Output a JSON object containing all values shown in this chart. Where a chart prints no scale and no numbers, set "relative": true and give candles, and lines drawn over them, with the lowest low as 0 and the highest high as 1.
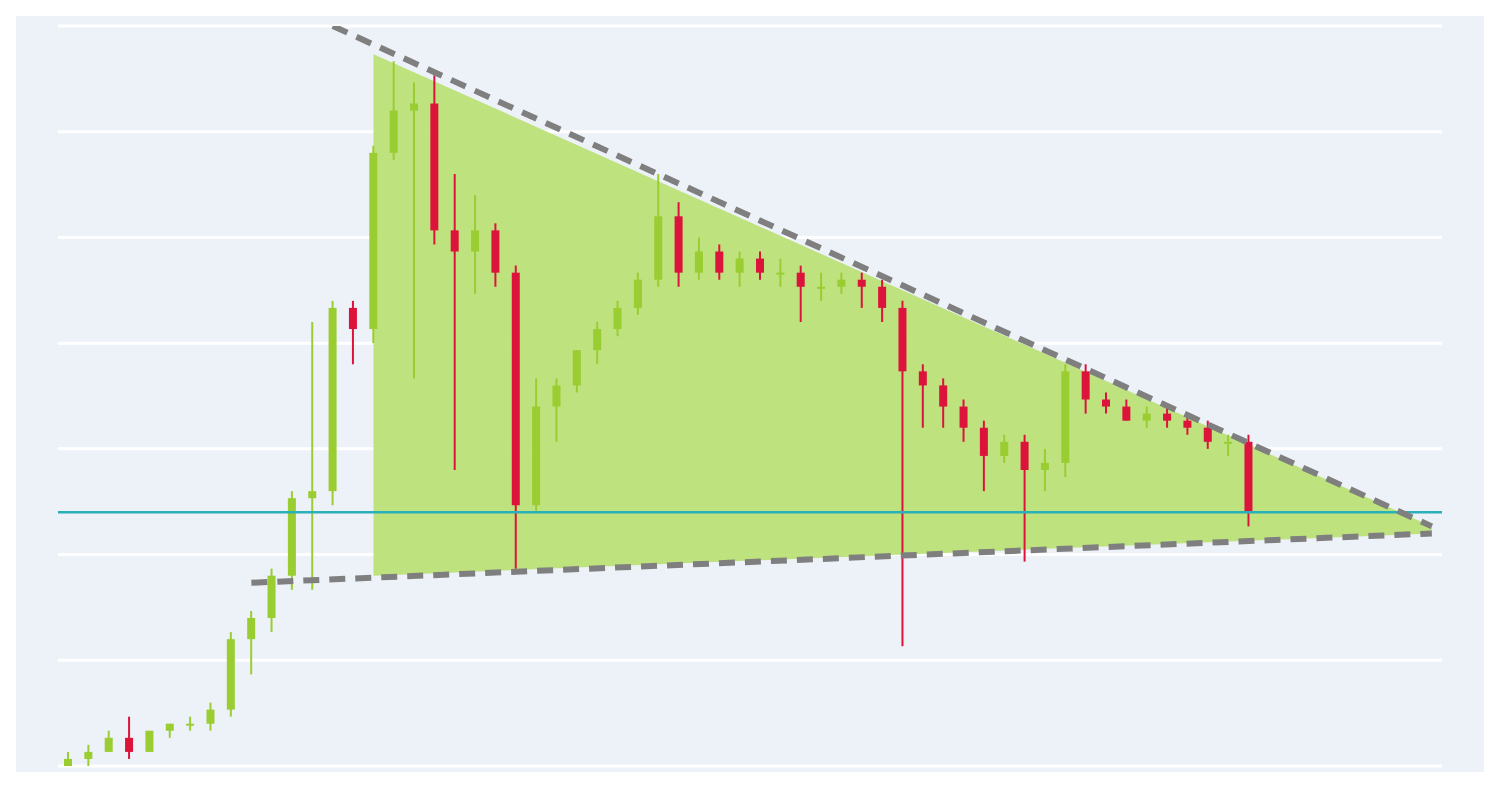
{
  "chart_data": {
    "type": "candlestick",
    "relative": true,
    "grid": "y",
    "tick_labels": false,
    "categories": [
      null,
      null,
      null,
      null,
      null,
      null,
      null,
      null,
      null,
      null,
      null,
      null,
      null,
      null,
      null,
      null,
      null,
      null,
      null,
      null,
      null,
      null,
      null,
      null,
      null,
      null,
      null,
      null,
      null,
      null,
      null,
      null,
      null,
      null,
      null,
      null,
      null,
      null,
      null,
      null,
      null,
      null,
      null,
      null,
      null,
      null,
      null,
      null,
      null,
      null,
      null,
      null,
      null,
      null,
      null,
      null,
      null,
      null,
      null,
      null,
      null,
      null,
      null,
      null,
      null,
      null,
      null,
      null
    ],
    "ohlc": [
      [
        0.0,
        0.02,
        0.0,
        0.01
      ],
      [
        0.01,
        0.03,
        0.0,
        0.02
      ],
      [
        0.02,
        0.05,
        0.02,
        0.04
      ],
      [
        0.04,
        0.07,
        0.01,
        0.02
      ],
      [
        0.02,
        0.05,
        0.02,
        0.05
      ],
      [
        0.05,
        0.06,
        0.04,
        0.06
      ],
      [
        0.06,
        0.07,
        0.05,
        0.06
      ],
      [
        0.06,
        0.09,
        0.05,
        0.08
      ],
      [
        0.08,
        0.19,
        0.07,
        0.18
      ],
      [
        0.18,
        0.22,
        0.13,
        0.21
      ],
      [
        0.21,
        0.28,
        0.19,
        0.27
      ],
      [
        0.27,
        0.39,
        0.25,
        0.38
      ],
      [
        0.38,
        0.63,
        0.25,
        0.39
      ],
      [
        0.39,
        0.66,
        0.37,
        0.65
      ],
      [
        0.65,
        0.66,
        0.57,
        0.62
      ],
      [
        0.62,
        0.88,
        0.6,
        0.87
      ],
      [
        0.87,
        1.0,
        0.86,
        0.93
      ],
      [
        0.93,
        0.97,
        0.55,
        0.94
      ],
      [
        0.94,
        0.98,
        0.74,
        0.76
      ],
      [
        0.76,
        0.84,
        0.42,
        0.73
      ],
      [
        0.73,
        0.81,
        0.67,
        0.76
      ],
      [
        0.76,
        0.77,
        0.68,
        0.7
      ],
      [
        0.7,
        0.71,
        0.28,
        0.37
      ],
      [
        0.37,
        0.55,
        0.36,
        0.51
      ],
      [
        0.51,
        0.55,
        0.46,
        0.54
      ],
      [
        0.54,
        0.59,
        0.53,
        0.59
      ],
      [
        0.59,
        0.63,
        0.57,
        0.62
      ],
      [
        0.62,
        0.66,
        0.61,
        0.65
      ],
      [
        0.65,
        0.7,
        0.64,
        0.69
      ],
      [
        0.69,
        0.84,
        0.68,
        0.78
      ],
      [
        0.78,
        0.8,
        0.68,
        0.7
      ],
      [
        0.7,
        0.75,
        0.69,
        0.73
      ],
      [
        0.73,
        0.74,
        0.69,
        0.7
      ],
      [
        0.7,
        0.73,
        0.68,
        0.72
      ],
      [
        0.72,
        0.73,
        0.69,
        0.7
      ],
      [
        0.7,
        0.72,
        0.68,
        0.7
      ],
      [
        0.7,
        0.71,
        0.63,
        0.68
      ],
      [
        0.68,
        0.7,
        0.66,
        0.68
      ],
      [
        0.68,
        0.7,
        0.67,
        0.69
      ],
      [
        0.69,
        0.7,
        0.65,
        0.68
      ],
      [
        0.68,
        0.69,
        0.63,
        0.65
      ],
      [
        0.65,
        0.66,
        0.17,
        0.56
      ],
      [
        0.56,
        0.57,
        0.48,
        0.54
      ],
      [
        0.54,
        0.55,
        0.48,
        0.51
      ],
      [
        0.51,
        0.52,
        0.46,
        0.48
      ],
      [
        0.48,
        0.49,
        0.39,
        0.44
      ],
      [
        0.44,
        0.47,
        0.43,
        0.46
      ],
      [
        0.46,
        0.47,
        0.29,
        0.42
      ],
      [
        0.42,
        0.45,
        0.39,
        0.43
      ],
      [
        0.43,
        0.57,
        0.41,
        0.56
      ],
      [
        0.56,
        0.57,
        0.5,
        0.52
      ],
      [
        0.52,
        0.53,
        0.5,
        0.51
      ],
      [
        0.51,
        0.52,
        0.49,
        0.49
      ],
      [
        0.49,
        0.51,
        0.48,
        0.5
      ],
      [
        0.5,
        0.51,
        0.48,
        0.49
      ],
      [
        0.49,
        0.5,
        0.47,
        0.48
      ],
      [
        0.48,
        0.49,
        0.45,
        0.46
      ],
      [
        0.46,
        0.47,
        0.44,
        0.46
      ],
      [
        0.46,
        0.47,
        0.34,
        0.36
      ],
      null,
      null,
      null,
      null,
      null,
      null,
      null,
      null,
      null
    ],
    "colors": [
      "#9acd32",
      "#9acd32",
      "#9acd32",
      "#dc143c",
      "#9acd32",
      "#9acd32",
      "#9acd32",
      "#9acd32",
      "#9acd32",
      "#9acd32",
      "#9acd32",
      "#9acd32",
      "#9acd32",
      "#9acd32",
      "#dc143c",
      "#9acd32",
      "#9acd32",
      "#9acd32",
      "#dc143c",
      "#dc143c",
      "#9acd32",
      "#dc143c",
      "#dc143c",
      "#9acd32",
      "#9acd32",
      "#9acd32",
      "#9acd32",
      "#9acd32",
      "#9acd32",
      "#9acd32",
      "#dc143c",
      "#9acd32",
      "#dc143c",
      "#9acd32",
      "#dc143c",
      "#9acd32",
      "#dc143c",
      "#9acd32",
      "#9acd32",
      "#dc143c",
      "#dc143c",
      "#dc143c",
      "#dc143c",
      "#dc143c",
      "#dc143c",
      "#dc143c",
      "#9acd32",
      "#dc143c",
      "#9acd32",
      "#9acd32",
      "#dc143c",
      "#dc143c",
      "#dc143c",
      "#9acd32",
      "#dc143c",
      "#dc143c",
      "#dc143c",
      "#9acd32",
      "#dc143c",
      null,
      null,
      null,
      null,
      null,
      null,
      null,
      null,
      null
    ],
    "ref_lines": [
      {
        "axis": "y",
        "value": 0.36,
        "color": "#2ab0b8"
      }
    ],
    "series": [
      {
        "type": "line",
        "color": "#7f7f7f",
        "line_style": "dashed",
        "values": [
          null,
          null,
          null,
          null,
          null,
          null,
          null,
          null,
          null,
          null,
          null,
          null,
          null,
          1.05,
          null,
          null,
          null,
          null,
          null,
          null,
          null,
          null,
          null,
          null,
          null,
          null,
          null,
          null,
          null,
          null,
          null,
          null,
          null,
          null,
          null,
          null,
          null,
          null,
          null,
          null,
          null,
          null,
          null,
          null,
          null,
          null,
          null,
          null,
          null,
          null,
          null,
          null,
          null,
          null,
          null,
          null,
          null,
          null,
          null,
          null,
          null,
          null,
          null,
          null,
          null,
          null,
          null,
          0.34
        ],
        "lower": [
          null,
          null,
          null,
          null,
          null,
          null,
          null,
          null,
          null,
          null,
          null,
          null,
          null,
          null,
          null,
          0.27,
          null,
          null,
          null,
          null,
          null,
          null,
          null,
          null,
          null,
          null,
          null,
          null,
          null,
          null,
          null,
          null,
          null,
          null,
          null,
          null,
          null,
          null,
          null,
          null,
          null,
          null,
          null,
          null,
          null,
          null,
          null,
          null,
          null,
          null,
          null,
          null,
          null,
          null,
          null,
          null,
          null,
          null,
          null,
          null,
          null,
          null,
          null,
          null,
          null,
          null,
          null,
          0.33
        ],
        "upper": [
          null,
          null,
          null,
          null,
          null,
          null,
          null,
          null,
          null,
          null,
          null,
          null,
          null,
          null,
          null,
          1.01,
          null,
          null,
          null,
          null,
          null,
          null,
          null,
          null,
          null,
          null,
          null,
          null,
          null,
          null,
          null,
          null,
          null,
          null,
          null,
          null,
          null,
          null,
          null,
          null,
          null,
          null,
          null,
          null,
          null,
          null,
          null,
          null,
          null,
          null,
          null,
          null,
          null,
          null,
          null,
          null,
          null,
          null,
          null,
          null,
          null,
          null,
          null,
          null,
          null,
          null,
          null,
          0.34
        ]
      },
      {
        "type": "line",
        "color": "#7f7f7f",
        "line_style": "dashed",
        "values": [
          null,
          null,
          null,
          null,
          null,
          null,
          null,
          null,
          null,
          0.26,
          null,
          null,
          null,
          null,
          null,
          null,
          null,
          null,
          null,
          null,
          null,
          null,
          null,
          null,
          null,
          null,
          null,
          null,
          null,
          null,
          null,
          null,
          null,
          null,
          null,
          null,
          null,
          null,
          null,
          null,
          null,
          null,
          null,
          null,
          null,
          null,
          null,
          null,
          null,
          null,
          null,
          null,
          null,
          null,
          null,
          null,
          null,
          null,
          null,
          null,
          null,
          null,
          null,
          null,
          null,
          null,
          null,
          0.33
        ]
      }
    ]
  }
}
